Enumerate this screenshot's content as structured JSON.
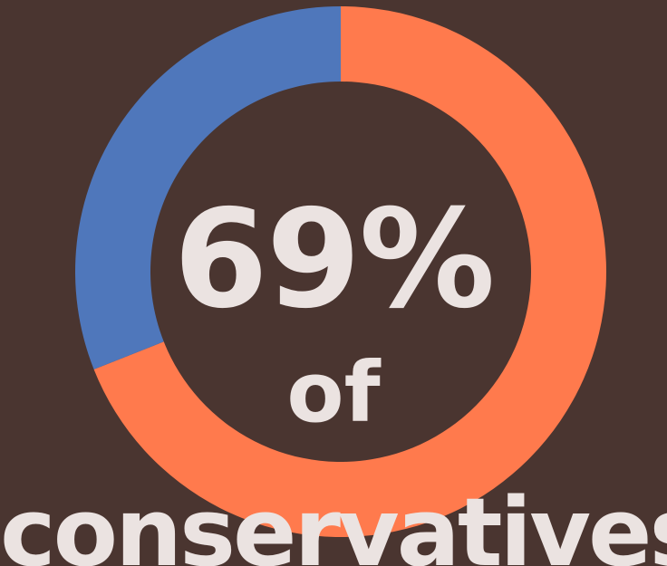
{
  "chart_data": {
    "type": "pie",
    "slices": [
      {
        "value": 69,
        "color": "#ff7a4d"
      },
      {
        "value": 31,
        "color": "#4f77bb"
      }
    ]
  },
  "center_text": {
    "percent": "69%",
    "of": "of",
    "group": "conservatives"
  },
  "colors": {
    "background": "#4a3530",
    "text": "#ebe3e1"
  }
}
